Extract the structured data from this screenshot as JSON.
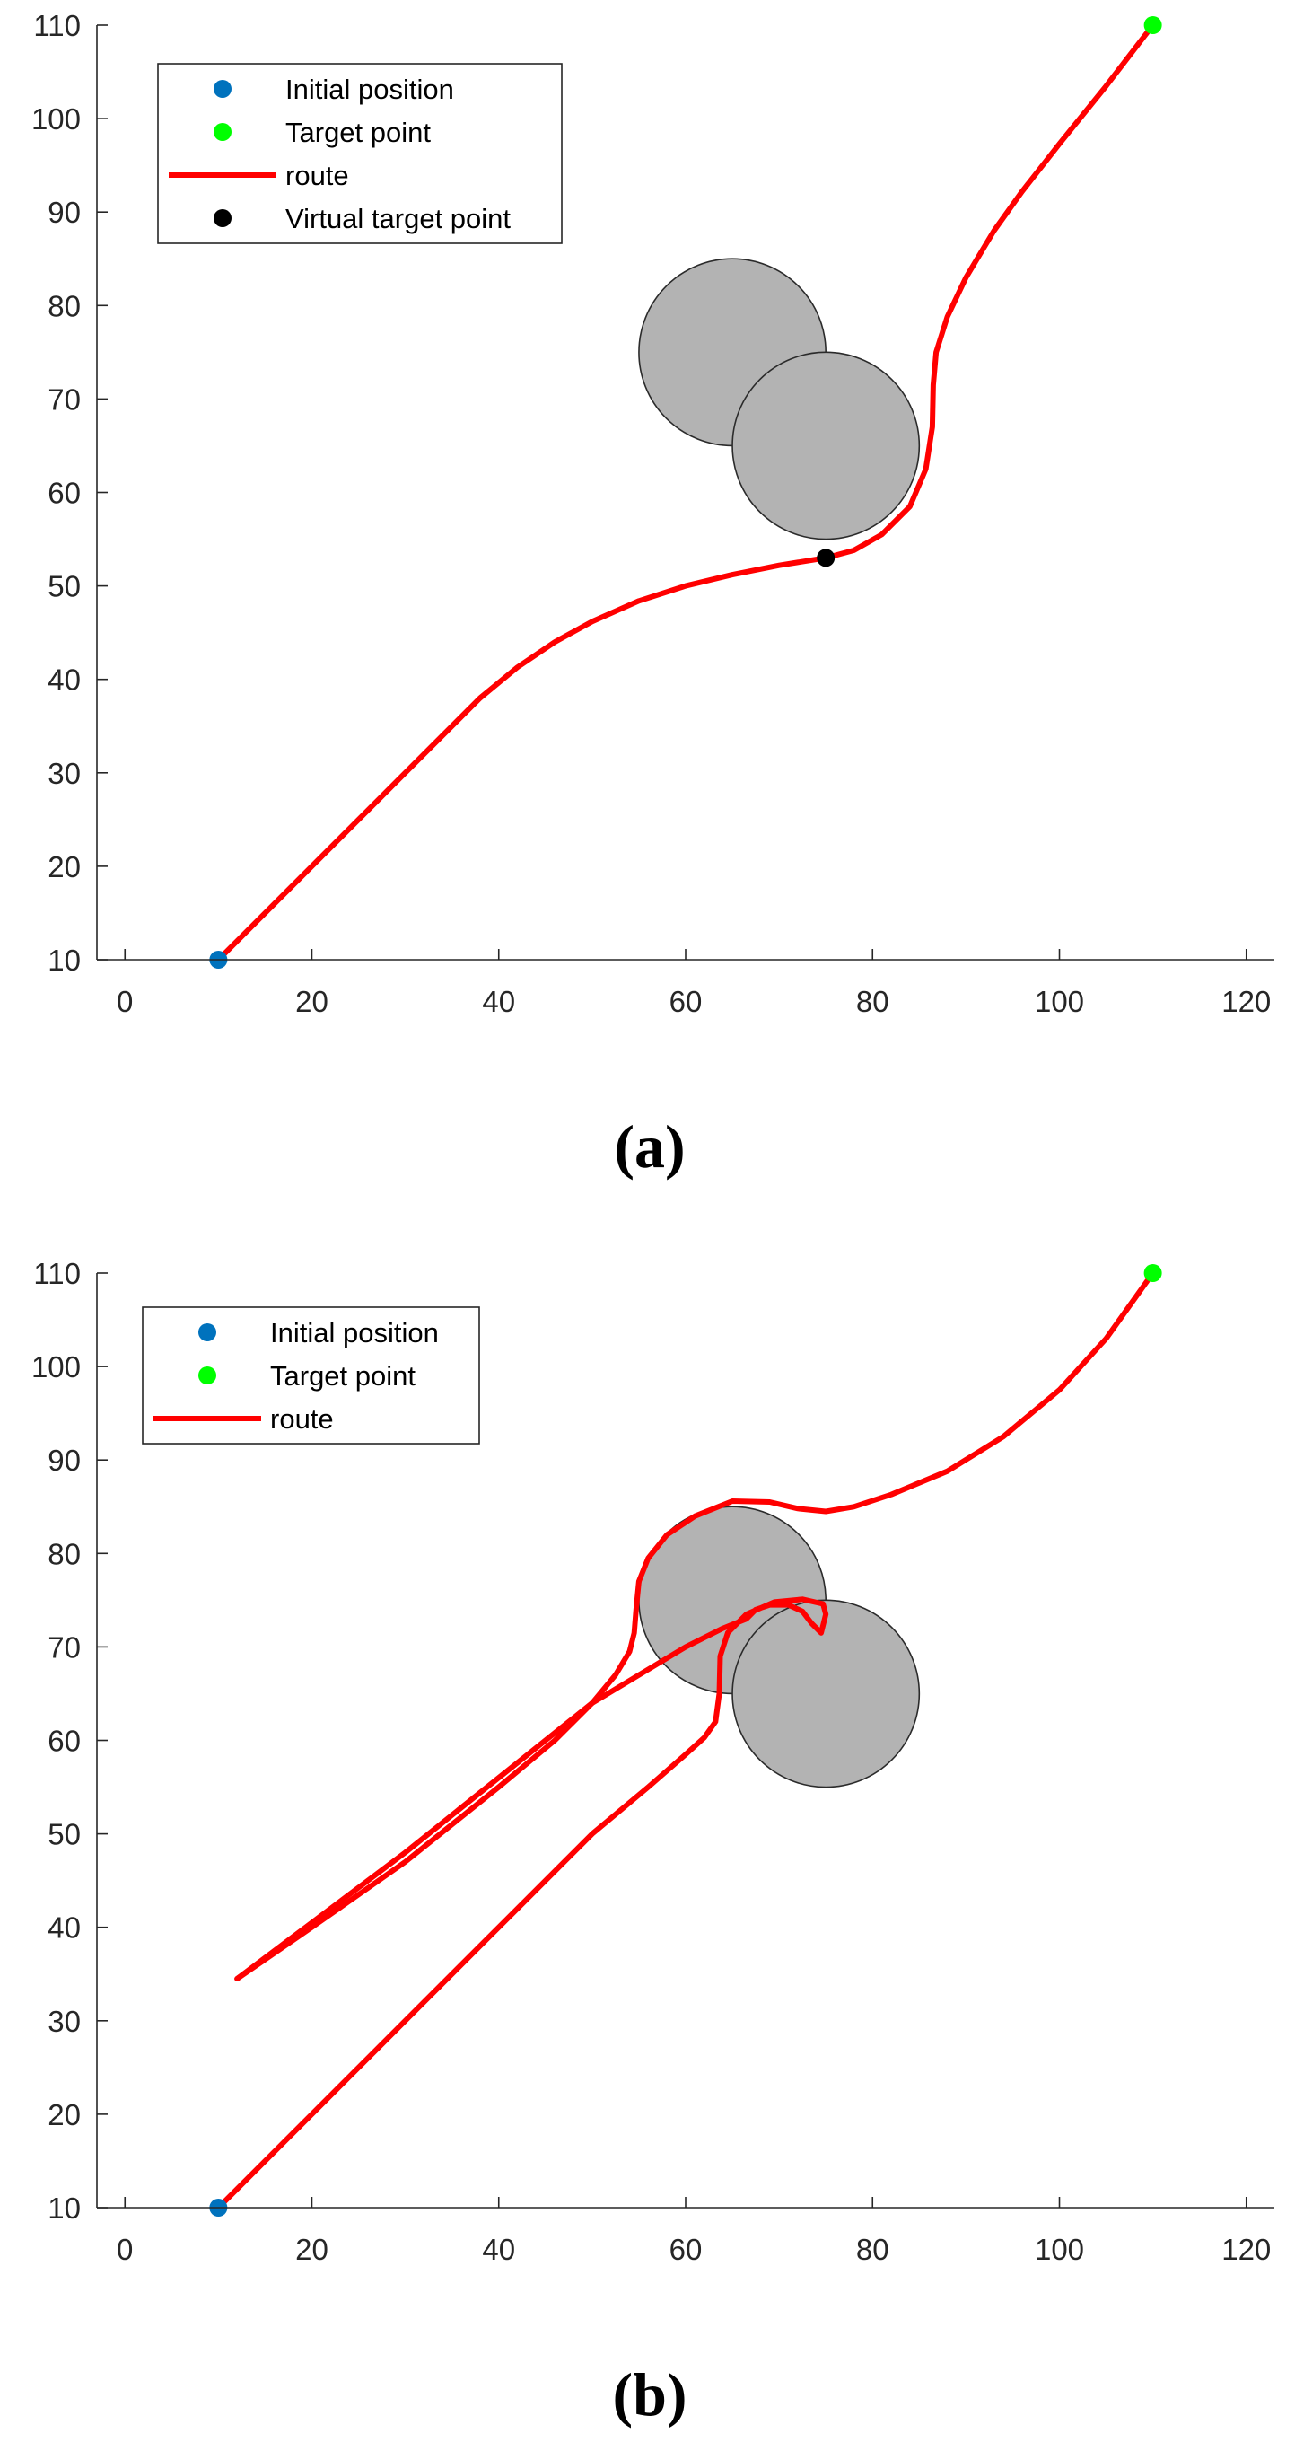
{
  "colors": {
    "initial": "#0072BD",
    "target": "#00FF00",
    "route": "#FF0000",
    "virtual_target": "#000000",
    "obstacle_fill": "#B3B3B3",
    "obstacle_edge": "#2B2B2B",
    "axis": "#262626"
  },
  "chart_data": [
    {
      "panel_label": "(a)",
      "type": "line",
      "xlim": [
        -3,
        123
      ],
      "ylim": [
        10,
        110
      ],
      "xticks": [
        0,
        20,
        40,
        60,
        80,
        100,
        120
      ],
      "yticks": [
        10,
        20,
        30,
        40,
        50,
        60,
        70,
        80,
        90,
        100,
        110
      ],
      "grid": false,
      "legend_position": "top-left",
      "legend": [
        {
          "key": "initial",
          "label": "Initial position",
          "marker": "dot"
        },
        {
          "key": "target",
          "label": "Target point",
          "marker": "dot"
        },
        {
          "key": "route",
          "label": "route",
          "marker": "line"
        },
        {
          "key": "virtual_target",
          "label": "Virtual target point",
          "marker": "dot"
        }
      ],
      "obstacles": [
        {
          "cx": 65,
          "cy": 75,
          "r": 10
        },
        {
          "cx": 75,
          "cy": 65,
          "r": 10
        }
      ],
      "points": [
        {
          "key": "initial",
          "x": 10,
          "y": 10
        },
        {
          "key": "target",
          "x": 110,
          "y": 110
        },
        {
          "key": "virtual_target",
          "x": 75,
          "y": 53
        }
      ],
      "routes": [
        [
          [
            10,
            10
          ],
          [
            20,
            20
          ],
          [
            30,
            30
          ],
          [
            38,
            38
          ],
          [
            42,
            41.3
          ],
          [
            46,
            44
          ],
          [
            50,
            46.2
          ],
          [
            55,
            48.4
          ],
          [
            60,
            50
          ],
          [
            65,
            51.2
          ],
          [
            70,
            52.2
          ],
          [
            75,
            53
          ],
          [
            78,
            53.8
          ],
          [
            81,
            55.5
          ],
          [
            84,
            58.5
          ],
          [
            85.7,
            62.5
          ],
          [
            86.4,
            67
          ],
          [
            86.5,
            71.5
          ],
          [
            86.8,
            75
          ],
          [
            88,
            78.8
          ],
          [
            90,
            83
          ],
          [
            93,
            88
          ],
          [
            96,
            92.2
          ],
          [
            100,
            97.3
          ],
          [
            105,
            103.5
          ],
          [
            110,
            110
          ]
        ]
      ]
    },
    {
      "panel_label": "(b)",
      "type": "line",
      "xlim": [
        -3,
        123
      ],
      "ylim": [
        10,
        110
      ],
      "xticks": [
        0,
        20,
        40,
        60,
        80,
        100,
        120
      ],
      "yticks": [
        10,
        20,
        30,
        40,
        50,
        60,
        70,
        80,
        90,
        100,
        110
      ],
      "grid": false,
      "legend_position": "top-left",
      "legend": [
        {
          "key": "initial",
          "label": "Initial position",
          "marker": "dot"
        },
        {
          "key": "target",
          "label": "Target point",
          "marker": "dot"
        },
        {
          "key": "route",
          "label": "route",
          "marker": "line"
        }
      ],
      "obstacles": [
        {
          "cx": 65,
          "cy": 75,
          "r": 10
        },
        {
          "cx": 75,
          "cy": 65,
          "r": 10
        }
      ],
      "points": [
        {
          "key": "initial",
          "x": 10,
          "y": 10
        },
        {
          "key": "target",
          "x": 110,
          "y": 110
        }
      ],
      "routes": [
        [
          [
            10,
            10
          ],
          [
            20,
            20
          ],
          [
            30,
            30
          ],
          [
            40,
            40
          ],
          [
            50,
            50
          ],
          [
            56,
            55
          ],
          [
            60,
            58.5
          ],
          [
            62,
            60.3
          ],
          [
            63.2,
            62
          ],
          [
            63.6,
            65
          ],
          [
            63.7,
            69
          ],
          [
            64.5,
            71.5
          ],
          [
            66.5,
            73.5
          ],
          [
            69.5,
            74.8
          ],
          [
            72.5,
            75.1
          ],
          [
            74.7,
            74.6
          ],
          [
            75,
            73.5
          ],
          [
            74.5,
            71.5
          ],
          [
            73.5,
            72.5
          ],
          [
            72.5,
            73.8
          ],
          [
            71,
            74.5
          ],
          [
            69,
            74.5
          ],
          [
            67.5,
            74
          ],
          [
            66.5,
            73
          ],
          [
            64,
            72
          ],
          [
            60,
            70
          ],
          [
            50,
            64
          ],
          [
            40,
            56
          ],
          [
            30,
            48
          ],
          [
            20,
            40.5
          ],
          [
            12,
            34.5
          ]
        ],
        [
          [
            12,
            34.5
          ],
          [
            20,
            40
          ],
          [
            30,
            47
          ],
          [
            40,
            55
          ],
          [
            46,
            60
          ],
          [
            50,
            64
          ],
          [
            52.5,
            67
          ],
          [
            54,
            69.5
          ],
          [
            54.5,
            71.5
          ],
          [
            54.7,
            74
          ],
          [
            55,
            77
          ],
          [
            56,
            79.5
          ],
          [
            58,
            82
          ],
          [
            61,
            84
          ],
          [
            65,
            85.6
          ],
          [
            69,
            85.5
          ],
          [
            72,
            84.8
          ],
          [
            75,
            84.5
          ],
          [
            78,
            85
          ],
          [
            82,
            86.3
          ],
          [
            88,
            88.8
          ],
          [
            94,
            92.5
          ],
          [
            100,
            97.5
          ],
          [
            105,
            103
          ],
          [
            110,
            110
          ]
        ]
      ]
    }
  ]
}
